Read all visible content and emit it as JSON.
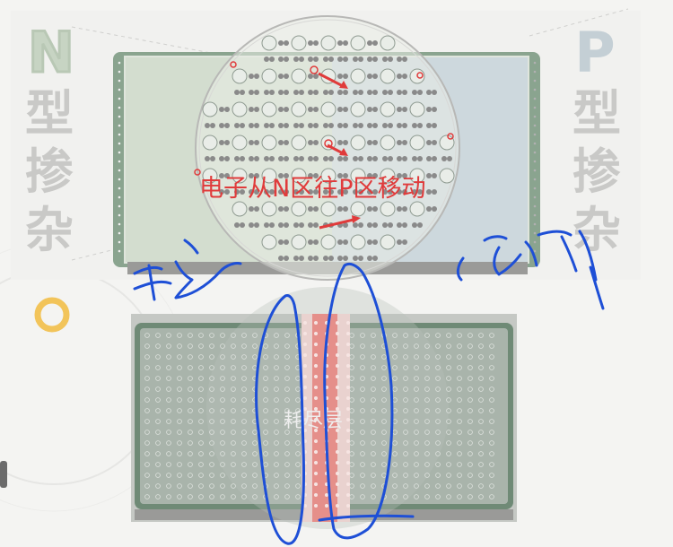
{
  "top_panel": {
    "left_letter": "N",
    "left_chars": [
      "型",
      "掺",
      "杂"
    ],
    "right_letter": "P",
    "right_chars": [
      "型",
      "掺",
      "杂"
    ],
    "caption": "电子从N区往P区移动"
  },
  "bottom_panel": {
    "depletion_label": "耗尽层"
  },
  "colors": {
    "n_region": "#cfdccb",
    "p_region": "#cbd6db",
    "frame_green": "#6c8c74",
    "caption_red": "#e03b3b",
    "depletion_red": "#e58f8a",
    "ink_blue": "#1e4fd6",
    "accent_yellow": "#f2c45a"
  }
}
